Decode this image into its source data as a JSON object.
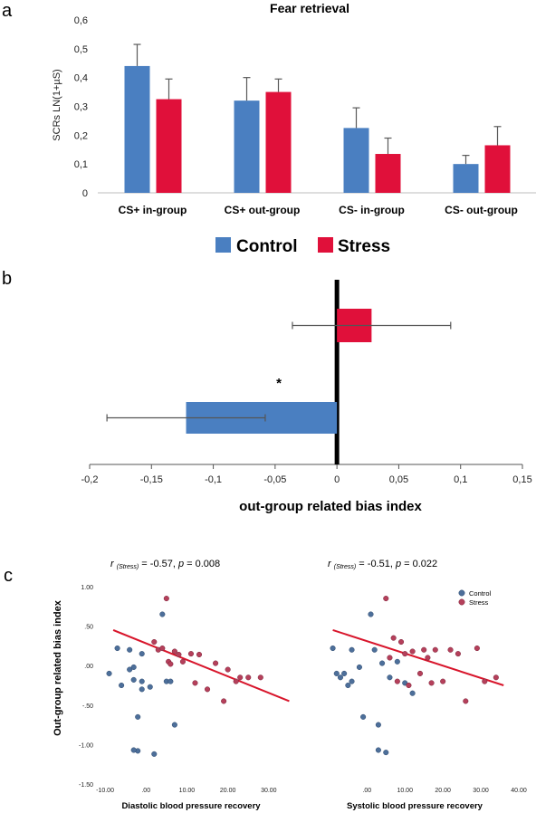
{
  "chart_data": [
    {
      "type": "bar",
      "panel": "a",
      "title": "Fear retrieval",
      "ylabel": "SCRs LN(1+µS)",
      "ylim": [
        0,
        0.6
      ],
      "ytick_labels": [
        "0",
        "0,1",
        "0,2",
        "0,3",
        "0,4",
        "0,5",
        "0,6"
      ],
      "categories": [
        "CS+  in-group",
        "CS+  out-group",
        "CS-  in-group",
        "CS-  out-group"
      ],
      "series": [
        {
          "name": "Control",
          "color": "#4a7fc1",
          "values": [
            0.44,
            0.32,
            0.225,
            0.1
          ],
          "errors": [
            0.075,
            0.08,
            0.07,
            0.03
          ]
        },
        {
          "name": "Stress",
          "color": "#e0103a",
          "values": [
            0.325,
            0.35,
            0.135,
            0.165
          ],
          "errors": [
            0.07,
            0.045,
            0.055,
            0.065
          ]
        }
      ],
      "legend": {
        "placement": "bottom",
        "items": [
          "Control",
          "Stress"
        ]
      }
    },
    {
      "type": "bar",
      "panel": "b",
      "orientation": "horizontal",
      "xlabel": "out-group related bias index",
      "xlim": [
        -0.2,
        0.15
      ],
      "xtick_labels": [
        "-0,2",
        "-0,15",
        "-0,1",
        "-0,05",
        "0",
        "0,05",
        "0,1",
        "0,15"
      ],
      "series": [
        {
          "name": "Stress",
          "color": "#e0103a",
          "value": 0.028,
          "error": 0.064
        },
        {
          "name": "Control",
          "color": "#4a7fc1",
          "value": -0.122,
          "error": 0.064
        }
      ],
      "annotation": "*"
    },
    {
      "type": "scatter",
      "panel": "c",
      "ylabel": "Out-group related bias index",
      "ylim": [
        -1.5,
        1.0
      ],
      "ytick_labels": [
        "1.00",
        ".50",
        ".00",
        "-.50",
        "-1.00",
        "-1.50"
      ],
      "legend": {
        "placement": "top-right",
        "items": [
          "Control",
          "Stress"
        ]
      },
      "colors": {
        "control": "#4d6f9a",
        "stress": "#b5405b",
        "fit_line": "#d8152b"
      },
      "subplots": [
        {
          "stat_r": "r",
          "stat_sub": "(Stress)",
          "stat_rval": " = -0.57, ",
          "stat_p": "p",
          "stat_pval": " = 0.008",
          "xlabel": "Diastolic blood pressure recovery",
          "xlim": [
            -12,
            38
          ],
          "xtick_values": [
            -10,
            0,
            10,
            20,
            30
          ],
          "xtick_labels": [
            "-10.00",
            ".00",
            "10.00",
            "20.00",
            "30.00"
          ],
          "fit": {
            "x": [
              -8,
              35
            ],
            "y": [
              0.45,
              -0.45
            ]
          },
          "control": {
            "x": [
              -9,
              -7,
              -6,
              -4,
              -3,
              -3,
              -2,
              -1,
              -1,
              -1,
              2,
              4,
              5,
              6,
              7,
              -4,
              -3,
              1,
              -2
            ],
            "y": [
              -0.1,
              0.22,
              -0.25,
              0.2,
              -0.02,
              -0.18,
              -1.08,
              -0.2,
              -0.3,
              0.15,
              -1.12,
              0.65,
              -0.2,
              -0.2,
              -0.75,
              -0.05,
              -1.07,
              -0.27,
              -0.65
            ]
          },
          "stress": {
            "x": [
              2,
              3,
              4,
              5,
              5.5,
              6,
              7,
              8,
              9,
              11,
              12,
              13,
              15,
              17,
              19,
              20,
              22,
              23,
              25,
              28
            ],
            "y": [
              0.3,
              0.2,
              0.22,
              0.85,
              0.05,
              0.02,
              0.18,
              0.14,
              0.05,
              0.15,
              -0.22,
              0.14,
              -0.3,
              0.03,
              -0.45,
              -0.05,
              -0.2,
              -0.15,
              -0.15,
              -0.15
            ]
          }
        },
        {
          "stat_r": "r",
          "stat_sub": "(Stress)",
          "stat_rval": " = -0.51, ",
          "stat_p": "p",
          "stat_pval": " = 0.022",
          "xlabel": "Systolic blood pressure recovery",
          "xlim": [
            -12,
            40
          ],
          "xtick_values": [
            0,
            10,
            20,
            30,
            40
          ],
          "xtick_labels": [
            ".00",
            "10.00",
            "20.00",
            "30.00",
            "40.00"
          ],
          "fit": {
            "x": [
              -9,
              36
            ],
            "y": [
              0.45,
              -0.25
            ]
          },
          "control": {
            "x": [
              -9,
              -8,
              -7,
              -6,
              -5,
              -4,
              -4,
              -2,
              -1,
              1,
              2,
              3,
              3,
              4,
              5,
              6,
              8,
              10,
              12
            ],
            "y": [
              0.22,
              -0.1,
              -0.15,
              -0.1,
              -0.25,
              0.2,
              -0.2,
              -0.02,
              -0.65,
              0.65,
              0.2,
              -1.07,
              -0.75,
              0.03,
              -1.1,
              -0.15,
              0.05,
              -0.22,
              -0.35
            ]
          },
          "stress": {
            "x": [
              5,
              6,
              7,
              8,
              9,
              10,
              11,
              12,
              14,
              15,
              16,
              17,
              18,
              20,
              22,
              24,
              26,
              29,
              31,
              34
            ],
            "y": [
              0.85,
              0.1,
              0.35,
              -0.2,
              0.3,
              0.15,
              -0.25,
              0.18,
              -0.1,
              0.2,
              0.1,
              -0.22,
              0.2,
              -0.2,
              0.2,
              0.15,
              -0.45,
              0.22,
              -0.2,
              -0.15
            ]
          }
        }
      ]
    }
  ],
  "labels": {
    "a": "a",
    "b": "b",
    "c": "c",
    "star": "*"
  },
  "colors": {
    "control": "#4a7fc1",
    "stress": "#e0103a"
  }
}
